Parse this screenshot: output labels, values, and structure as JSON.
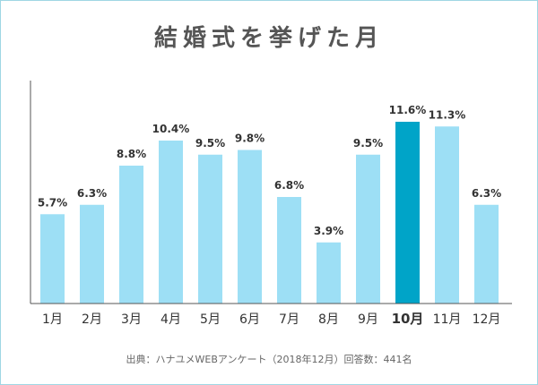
{
  "title": "結婚式を挙げた月",
  "source": "出典：ハナユメWEBアンケート（2018年12月）回答数：441名",
  "colors": {
    "bar": "#9ddff5",
    "highlight": "#00a4c8",
    "label": "#333333",
    "axis": "#555555"
  },
  "chart_data": {
    "type": "bar",
    "categories": [
      "1月",
      "2月",
      "3月",
      "4月",
      "5月",
      "6月",
      "7月",
      "8月",
      "9月",
      "10月",
      "11月",
      "12月"
    ],
    "values": [
      5.7,
      6.3,
      8.8,
      10.4,
      9.5,
      9.8,
      6.8,
      3.9,
      9.5,
      11.6,
      11.3,
      6.3
    ],
    "value_labels": [
      "5.7%",
      "6.3%",
      "8.8%",
      "10.4%",
      "9.5%",
      "9.8%",
      "6.8%",
      "3.9%",
      "9.5%",
      "11.6%",
      "11.3%",
      "6.3%"
    ],
    "highlight_index": 9,
    "ylim": [
      0,
      11.6
    ],
    "grid": false
  }
}
